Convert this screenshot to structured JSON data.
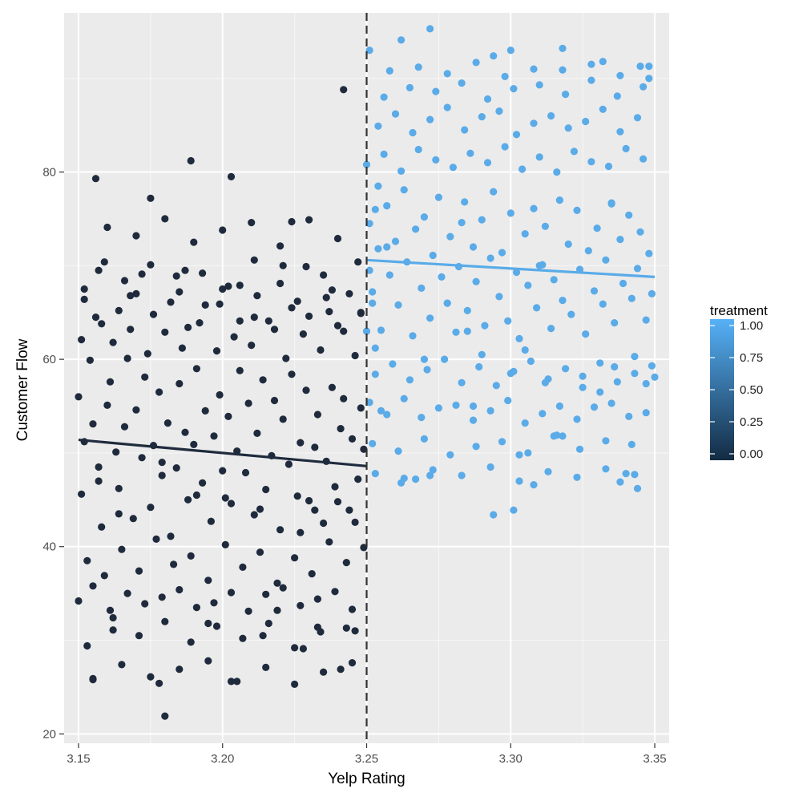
{
  "chart_data": {
    "type": "scatter",
    "title": "",
    "xlabel": "Yelp Rating",
    "ylabel": "Customer Flow",
    "xlim": [
      3.145,
      3.355
    ],
    "ylim": [
      19,
      97
    ],
    "x_ticks": [
      3.15,
      3.2,
      3.25,
      3.3,
      3.35
    ],
    "x_tick_labels": [
      "3.15",
      "3.20",
      "3.25",
      "3.30",
      "3.35"
    ],
    "y_ticks": [
      20,
      40,
      60,
      80
    ],
    "y_tick_labels": [
      "20",
      "40",
      "60",
      "80"
    ],
    "grid": true,
    "cutoff": 3.25,
    "cutoff_line_style": "dashed",
    "panel_background": "#ebebeb",
    "legend": {
      "title": "treatment",
      "position": "right",
      "labels": [
        "1.00",
        "0.75",
        "0.50",
        "0.25",
        "0.00"
      ],
      "values": [
        1.0,
        0.75,
        0.5,
        0.25,
        0.0
      ],
      "color_low": "#132b43",
      "color_high": "#56b1f7"
    },
    "fit_lines": [
      {
        "treatment": 0,
        "x": [
          3.15,
          3.25
        ],
        "y": [
          51.4,
          48.6
        ]
      },
      {
        "treatment": 1,
        "x": [
          3.25,
          3.35
        ],
        "y": [
          70.6,
          68.8
        ]
      }
    ],
    "series": [
      {
        "treatment": 0,
        "color": "#1f2b3d",
        "x": [
          3.15,
          3.151,
          3.152,
          3.154,
          3.155,
          3.157,
          3.158,
          3.16,
          3.161,
          3.163,
          3.164,
          3.166,
          3.167,
          3.169,
          3.17,
          3.172,
          3.173,
          3.175,
          3.176,
          3.178,
          3.179,
          3.181,
          3.182,
          3.184,
          3.185,
          3.187,
          3.188,
          3.19,
          3.191,
          3.193,
          3.194,
          3.196,
          3.197,
          3.199,
          3.2,
          3.202,
          3.203,
          3.205,
          3.206,
          3.208,
          3.209,
          3.211,
          3.212,
          3.214,
          3.215,
          3.217,
          3.218,
          3.22,
          3.221,
          3.223,
          3.224,
          3.226,
          3.227,
          3.229,
          3.23,
          3.232,
          3.233,
          3.235,
          3.236,
          3.238,
          3.239,
          3.241,
          3.242,
          3.244,
          3.245,
          3.247,
          3.248,
          3.249,
          3.151,
          3.153,
          3.156,
          3.159,
          3.162,
          3.165,
          3.168,
          3.171,
          3.174,
          3.177,
          3.18,
          3.183,
          3.186,
          3.189,
          3.192,
          3.195,
          3.198,
          3.201,
          3.204,
          3.207,
          3.21,
          3.213,
          3.216,
          3.219,
          3.222,
          3.225,
          3.228,
          3.231,
          3.234,
          3.237,
          3.24,
          3.243,
          3.246,
          3.249,
          3.15,
          3.152,
          3.155,
          3.158,
          3.161,
          3.164,
          3.167,
          3.17,
          3.173,
          3.176,
          3.179,
          3.182,
          3.185,
          3.188,
          3.191,
          3.194,
          3.197,
          3.2,
          3.203,
          3.206,
          3.209,
          3.212,
          3.215,
          3.218,
          3.221,
          3.224,
          3.227,
          3.23,
          3.233,
          3.236,
          3.239,
          3.242,
          3.245,
          3.248,
          3.153,
          3.157,
          3.162,
          3.166,
          3.171,
          3.175,
          3.18,
          3.184,
          3.189,
          3.193,
          3.198,
          3.202,
          3.207,
          3.211,
          3.216,
          3.22,
          3.225,
          3.229,
          3.234,
          3.238,
          3.243,
          3.247,
          3.155,
          3.16,
          3.165,
          3.17,
          3.175,
          3.18,
          3.185,
          3.19,
          3.195,
          3.2,
          3.205,
          3.21,
          3.215,
          3.22,
          3.225,
          3.23,
          3.235,
          3.24,
          3.245,
          3.156,
          3.175,
          3.189,
          3.203,
          3.224,
          3.242,
          3.155,
          3.18,
          3.203,
          3.214,
          3.228,
          3.178,
          3.241,
          3.246,
          3.162,
          3.195,
          3.219,
          3.233,
          3.152,
          3.168,
          3.185,
          3.199,
          3.211,
          3.226,
          3.237,
          3.248,
          3.159,
          3.172,
          3.187,
          3.206,
          3.221,
          3.235,
          3.244,
          3.157,
          3.164,
          3.179,
          3.191,
          3.201,
          3.213,
          3.227,
          3.232,
          3.24,
          3.246
        ],
        "y": [
          56.0,
          45.6,
          51.2,
          59.9,
          53.1,
          48.5,
          42.1,
          55.1,
          57.6,
          50.1,
          46.2,
          52.8,
          60.1,
          43.0,
          54.6,
          49.5,
          58.1,
          44.2,
          50.8,
          56.5,
          47.6,
          53.2,
          41.1,
          48.4,
          57.4,
          52.2,
          45.0,
          50.9,
          59.0,
          46.8,
          54.5,
          42.7,
          51.8,
          56.2,
          48.1,
          53.9,
          44.6,
          50.2,
          58.8,
          47.9,
          55.3,
          43.4,
          52.1,
          57.8,
          46.1,
          49.7,
          55.6,
          41.8,
          53.6,
          48.8,
          58.4,
          45.4,
          51.1,
          56.7,
          44.9,
          50.6,
          54.1,
          42.5,
          49.1,
          57.0,
          46.4,
          52.6,
          55.8,
          43.9,
          51.5,
          47.2,
          54.8,
          50.4,
          62.1,
          38.5,
          64.5,
          36.9,
          61.8,
          39.7,
          63.2,
          37.4,
          60.6,
          40.8,
          62.9,
          38.1,
          61.2,
          39.0,
          63.9,
          36.4,
          60.9,
          40.2,
          62.4,
          37.8,
          61.5,
          39.4,
          64.1,
          36.1,
          60.1,
          38.8,
          62.7,
          37.1,
          61.0,
          40.5,
          63.6,
          38.3,
          60.4,
          39.9,
          34.2,
          66.4,
          35.8,
          63.8,
          33.2,
          65.2,
          35.0,
          67.0,
          33.9,
          64.8,
          34.6,
          66.1,
          35.4,
          63.4,
          33.5,
          65.8,
          34.0,
          67.5,
          35.1,
          64.1,
          33.1,
          66.8,
          34.9,
          63.2,
          35.6,
          65.5,
          33.7,
          64.6,
          34.4,
          66.6,
          35.2,
          63.0,
          33.3,
          65.0,
          29.4,
          69.5,
          31.1,
          68.4,
          30.5,
          70.1,
          32.0,
          68.9,
          29.8,
          69.2,
          31.5,
          67.8,
          30.2,
          70.6,
          31.8,
          68.1,
          29.2,
          69.9,
          30.9,
          67.4,
          31.3,
          70.4,
          25.9,
          74.1,
          27.4,
          73.2,
          26.1,
          75.0,
          26.9,
          72.5,
          27.8,
          73.8,
          25.6,
          74.6,
          27.1,
          72.1,
          25.3,
          74.9,
          26.6,
          72.9,
          27.6,
          79.3,
          77.2,
          81.2,
          79.5,
          74.7,
          88.8,
          25.8,
          21.9,
          25.6,
          30.5,
          29.1,
          25.4,
          26.9,
          31.0,
          32.4,
          31.8,
          33.2,
          31.4,
          67.5,
          66.8,
          67.2,
          65.9,
          64.5,
          66.2,
          65.1,
          64.9,
          70.4,
          69.1,
          69.5,
          67.9,
          70.0,
          69.0,
          67.0,
          47.0,
          43.5,
          49.0,
          45.5,
          45.2,
          44.0,
          41.5,
          43.9,
          44.8,
          42.6
        ]
      },
      {
        "treatment": 1,
        "color": "#5aabe8",
        "x": [
          3.251,
          3.252,
          3.254,
          3.255,
          3.257,
          3.258,
          3.26,
          3.261,
          3.263,
          3.264,
          3.266,
          3.267,
          3.269,
          3.27,
          3.272,
          3.273,
          3.275,
          3.276,
          3.278,
          3.279,
          3.281,
          3.282,
          3.284,
          3.285,
          3.287,
          3.288,
          3.29,
          3.291,
          3.293,
          3.294,
          3.296,
          3.297,
          3.299,
          3.3,
          3.302,
          3.303,
          3.305,
          3.306,
          3.308,
          3.309,
          3.311,
          3.312,
          3.314,
          3.315,
          3.317,
          3.318,
          3.32,
          3.321,
          3.323,
          3.324,
          3.326,
          3.327,
          3.329,
          3.33,
          3.332,
          3.333,
          3.335,
          3.336,
          3.338,
          3.339,
          3.341,
          3.342,
          3.344,
          3.345,
          3.347,
          3.348,
          3.349,
          3.25,
          3.253,
          3.256,
          3.259,
          3.262,
          3.265,
          3.268,
          3.271,
          3.274,
          3.277,
          3.28,
          3.283,
          3.286,
          3.289,
          3.292,
          3.295,
          3.298,
          3.301,
          3.304,
          3.307,
          3.31,
          3.313,
          3.316,
          3.319,
          3.322,
          3.325,
          3.328,
          3.331,
          3.334,
          3.337,
          3.34,
          3.343,
          3.346,
          3.349,
          3.251,
          3.254,
          3.257,
          3.26,
          3.263,
          3.266,
          3.269,
          3.272,
          3.275,
          3.278,
          3.281,
          3.284,
          3.287,
          3.29,
          3.293,
          3.296,
          3.299,
          3.302,
          3.305,
          3.308,
          3.311,
          3.314,
          3.317,
          3.32,
          3.323,
          3.326,
          3.329,
          3.332,
          3.335,
          3.338,
          3.341,
          3.344,
          3.347,
          3.252,
          3.256,
          3.261,
          3.265,
          3.27,
          3.274,
          3.279,
          3.283,
          3.288,
          3.292,
          3.297,
          3.301,
          3.306,
          3.31,
          3.315,
          3.319,
          3.324,
          3.328,
          3.333,
          3.337,
          3.342,
          3.346,
          3.253,
          3.258,
          3.263,
          3.268,
          3.273,
          3.278,
          3.283,
          3.288,
          3.293,
          3.298,
          3.303,
          3.308,
          3.313,
          3.318,
          3.323,
          3.328,
          3.333,
          3.338,
          3.343,
          3.348,
          3.262,
          3.272,
          3.294,
          3.3,
          3.318,
          3.332,
          3.345,
          3.348,
          3.251,
          3.272,
          3.316,
          3.294,
          3.301,
          3.318,
          3.338,
          3.344,
          3.35,
          3.262,
          3.267,
          3.287,
          3.303,
          3.308,
          3.34,
          3.257,
          3.253,
          3.278,
          3.285,
          3.3,
          3.312,
          3.325,
          3.331,
          3.347,
          3.255,
          3.27,
          3.29,
          3.305,
          3.336,
          3.343,
          3.31,
          3.283,
          3.335,
          3.25,
          3.251,
          3.252,
          3.253,
          3.254
        ],
        "y": [
          74.5,
          67.2,
          71.8,
          63.1,
          76.4,
          69.0,
          72.6,
          65.8,
          78.1,
          70.4,
          62.5,
          73.9,
          67.6,
          75.2,
          64.4,
          71.1,
          77.3,
          68.8,
          66.0,
          73.1,
          62.9,
          69.9,
          76.8,
          65.2,
          72.0,
          68.3,
          74.9,
          63.6,
          70.8,
          77.9,
          66.7,
          71.4,
          64.1,
          75.6,
          69.3,
          62.2,
          73.4,
          67.9,
          76.1,
          65.5,
          70.1,
          74.2,
          63.3,
          68.5,
          77.0,
          66.3,
          72.3,
          64.8,
          75.9,
          69.6,
          62.7,
          71.6,
          67.3,
          74.0,
          65.9,
          70.6,
          76.6,
          63.9,
          72.8,
          68.1,
          75.4,
          66.5,
          69.7,
          73.6,
          64.2,
          71.3,
          67.0,
          80.8,
          58.4,
          81.9,
          59.5,
          80.1,
          57.8,
          82.4,
          58.9,
          81.3,
          60.0,
          80.5,
          57.5,
          82.0,
          59.2,
          81.0,
          57.2,
          82.7,
          58.7,
          80.3,
          59.8,
          81.6,
          57.9,
          80.0,
          59.0,
          82.2,
          58.2,
          81.1,
          59.6,
          80.6,
          57.6,
          82.5,
          58.5,
          81.4,
          59.3,
          55.4,
          84.9,
          54.1,
          86.2,
          55.8,
          84.2,
          53.8,
          85.6,
          54.8,
          86.9,
          55.1,
          84.5,
          53.5,
          85.9,
          54.5,
          86.5,
          55.6,
          84.0,
          53.2,
          85.2,
          54.2,
          86.0,
          55.0,
          84.7,
          53.6,
          85.4,
          54.9,
          86.7,
          55.3,
          84.3,
          53.9,
          85.8,
          54.3,
          51.0,
          88.0,
          50.2,
          89.0,
          51.5,
          88.6,
          49.8,
          89.5,
          50.7,
          87.8,
          51.2,
          88.9,
          50.0,
          89.3,
          51.8,
          88.3,
          50.4,
          89.8,
          51.3,
          88.1,
          50.9,
          89.1,
          47.8,
          90.8,
          47.3,
          91.2,
          48.2,
          90.5,
          47.6,
          91.7,
          48.5,
          90.2,
          47.0,
          91.0,
          48.0,
          90.9,
          47.4,
          91.5,
          48.3,
          90.3,
          47.7,
          91.3,
          94.1,
          95.3,
          92.4,
          93.0,
          93.2,
          91.8,
          91.3,
          90.0,
          93.0,
          47.6,
          51.9,
          43.4,
          43.9,
          51.8,
          46.9,
          46.2,
          58.1,
          46.8,
          47.2,
          55.0,
          49.8,
          46.6,
          47.8,
          72.0,
          76.0,
          66.0,
          63.0,
          58.5,
          57.5,
          57.0,
          56.5,
          57.4,
          54.5,
          60.0,
          60.5,
          61.0,
          59.2,
          60.3,
          70.0,
          74.6,
          76.7,
          63.0,
          69.5,
          66.0,
          61.2,
          78.5
        ]
      }
    ]
  }
}
